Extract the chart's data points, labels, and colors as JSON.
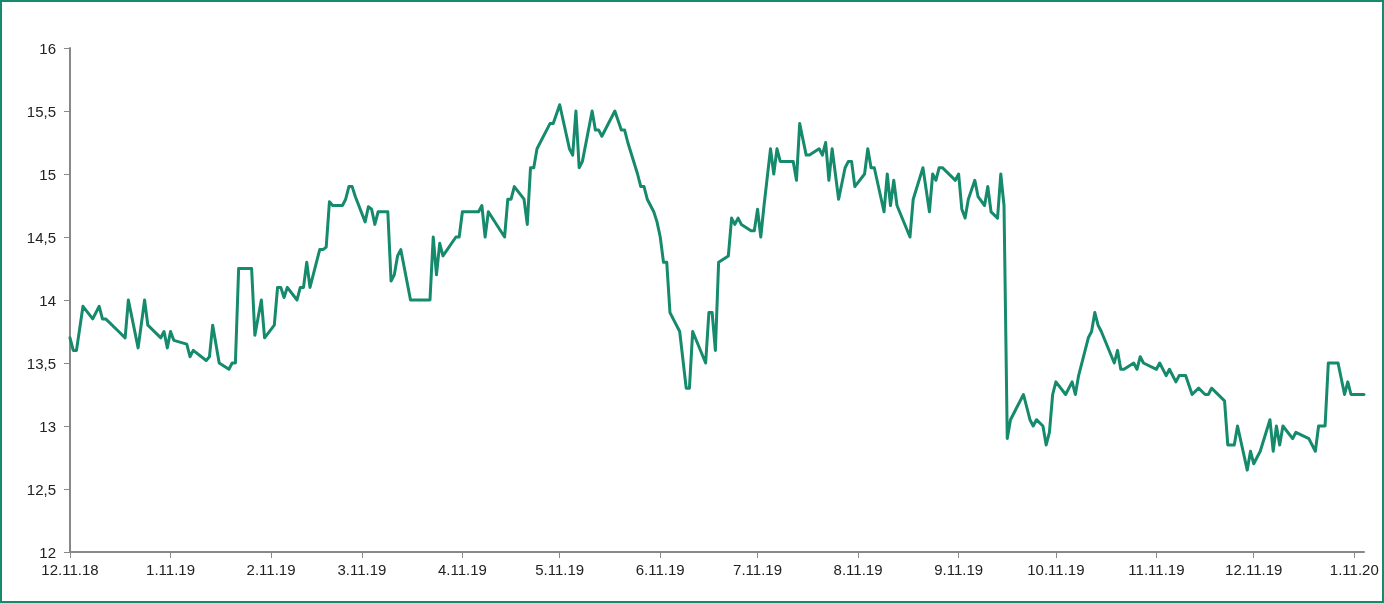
{
  "chart_data": {
    "type": "line",
    "xlim": [
      "2018-12-11",
      "2020-01-14"
    ],
    "ylim": [
      12,
      16
    ],
    "xticks": [
      {
        "value": "2018-12-11",
        "label": "12.11.18"
      },
      {
        "value": "2019-01-11",
        "label": "1.11.19"
      },
      {
        "value": "2019-02-11",
        "label": "2.11.19"
      },
      {
        "value": "2019-03-11",
        "label": "3.11.19"
      },
      {
        "value": "2019-04-11",
        "label": "4.11.19"
      },
      {
        "value": "2019-05-11",
        "label": "5.11.19"
      },
      {
        "value": "2019-06-11",
        "label": "6.11.19"
      },
      {
        "value": "2019-07-11",
        "label": "7.11.19"
      },
      {
        "value": "2019-08-11",
        "label": "8.11.19"
      },
      {
        "value": "2019-09-11",
        "label": "9.11.19"
      },
      {
        "value": "2019-10-11",
        "label": "10.11.19"
      },
      {
        "value": "2019-11-11",
        "label": "11.11.19"
      },
      {
        "value": "2019-12-11",
        "label": "12.11.19"
      },
      {
        "value": "2020-01-11",
        "label": "1.11.20"
      }
    ],
    "yticks": [
      12,
      {
        "value": 12.5,
        "label": "12,5"
      },
      13,
      {
        "value": 13.5,
        "label": "13,5"
      },
      14,
      {
        "value": 14.5,
        "label": "14,5"
      },
      15,
      {
        "value": 15.5,
        "label": "15,5"
      },
      16
    ],
    "grid": false,
    "marker": "none",
    "line_style": "solid",
    "x": [
      "2018-12-11",
      "2018-12-12",
      "2018-12-13",
      "2018-12-15",
      "2018-12-18",
      "2018-12-20",
      "2018-12-21",
      "2018-12-22",
      "2018-12-26",
      "2018-12-28",
      "2018-12-29",
      "2019-01-01",
      "2019-01-03",
      "2019-01-04",
      "2019-01-08",
      "2019-01-09",
      "2019-01-10",
      "2019-01-11",
      "2019-01-12",
      "2019-01-16",
      "2019-01-17",
      "2019-01-18",
      "2019-01-22",
      "2019-01-23",
      "2019-01-24",
      "2019-01-26",
      "2019-01-29",
      "2019-01-30",
      "2019-01-31",
      "2019-02-01",
      "2019-02-05",
      "2019-02-06",
      "2019-02-08",
      "2019-02-09",
      "2019-02-12",
      "2019-02-13",
      "2019-02-14",
      "2019-02-15",
      "2019-02-16",
      "2019-02-19",
      "2019-02-20",
      "2019-02-21",
      "2019-02-22",
      "2019-02-23",
      "2019-02-26",
      "2019-02-27",
      "2019-02-28",
      "2019-03-01",
      "2019-03-02",
      "2019-03-05",
      "2019-03-06",
      "2019-03-07",
      "2019-03-08",
      "2019-03-09",
      "2019-03-12",
      "2019-03-13",
      "2019-03-14",
      "2019-03-15",
      "2019-03-16",
      "2019-03-19",
      "2019-03-20",
      "2019-03-21",
      "2019-03-22",
      "2019-03-23",
      "2019-03-26",
      "2019-04-01",
      "2019-04-02",
      "2019-04-03",
      "2019-04-04",
      "2019-04-05",
      "2019-04-09",
      "2019-04-10",
      "2019-04-11",
      "2019-04-16",
      "2019-04-17",
      "2019-04-18",
      "2019-04-19",
      "2019-04-24",
      "2019-04-25",
      "2019-04-26",
      "2019-04-27",
      "2019-04-30",
      "2019-05-01",
      "2019-05-02",
      "2019-05-03",
      "2019-05-04",
      "2019-05-07",
      "2019-05-08",
      "2019-05-09",
      "2019-05-11",
      "2019-05-14",
      "2019-05-15",
      "2019-05-16",
      "2019-05-17",
      "2019-05-18",
      "2019-05-21",
      "2019-05-22",
      "2019-05-23",
      "2019-05-24",
      "2019-05-28",
      "2019-05-30",
      "2019-05-31",
      "2019-06-01",
      "2019-06-04",
      "2019-06-05",
      "2019-06-06",
      "2019-06-07",
      "2019-06-09",
      "2019-06-10",
      "2019-06-11",
      "2019-06-12",
      "2019-06-13",
      "2019-06-14",
      "2019-06-17",
      "2019-06-19",
      "2019-06-20",
      "2019-06-21",
      "2019-06-25",
      "2019-06-26",
      "2019-06-27",
      "2019-06-28",
      "2019-06-29",
      "2019-07-02",
      "2019-07-03",
      "2019-07-04",
      "2019-07-05",
      "2019-07-06",
      "2019-07-09",
      "2019-07-10",
      "2019-07-11",
      "2019-07-12",
      "2019-07-13",
      "2019-07-15",
      "2019-07-16",
      "2019-07-17",
      "2019-07-18",
      "2019-07-22",
      "2019-07-23",
      "2019-07-24",
      "2019-07-26",
      "2019-07-27",
      "2019-07-30",
      "2019-07-31",
      "2019-08-01",
      "2019-08-02",
      "2019-08-03",
      "2019-08-05",
      "2019-08-07",
      "2019-08-08",
      "2019-08-09",
      "2019-08-10",
      "2019-08-13",
      "2019-08-14",
      "2019-08-15",
      "2019-08-16",
      "2019-08-19",
      "2019-08-20",
      "2019-08-21",
      "2019-08-22",
      "2019-08-23",
      "2019-08-27",
      "2019-08-28",
      "2019-08-31",
      "2019-09-02",
      "2019-09-03",
      "2019-09-04",
      "2019-09-05",
      "2019-09-06",
      "2019-09-10",
      "2019-09-11",
      "2019-09-12",
      "2019-09-13",
      "2019-09-14",
      "2019-09-16",
      "2019-09-17",
      "2019-09-19",
      "2019-09-20",
      "2019-09-21",
      "2019-09-23",
      "2019-09-24",
      "2019-09-25",
      "2019-09-26",
      "2019-09-27",
      "2019-10-01",
      "2019-10-03",
      "2019-10-04",
      "2019-10-05",
      "2019-10-07",
      "2019-10-08",
      "2019-10-09",
      "2019-10-10",
      "2019-10-11",
      "2019-10-14",
      "2019-10-16",
      "2019-10-17",
      "2019-10-18",
      "2019-10-21",
      "2019-10-22",
      "2019-10-23",
      "2019-10-24",
      "2019-10-25",
      "2019-10-29",
      "2019-10-30",
      "2019-10-31",
      "2019-11-01",
      "2019-11-04",
      "2019-11-05",
      "2019-11-06",
      "2019-11-07",
      "2019-11-11",
      "2019-11-12",
      "2019-11-14",
      "2019-11-15",
      "2019-11-17",
      "2019-11-18",
      "2019-11-20",
      "2019-11-22",
      "2019-11-24",
      "2019-11-26",
      "2019-11-27",
      "2019-11-28",
      "2019-12-02",
      "2019-12-03",
      "2019-12-05",
      "2019-12-06",
      "2019-12-09",
      "2019-12-10",
      "2019-12-11",
      "2019-12-13",
      "2019-12-16",
      "2019-12-17",
      "2019-12-18",
      "2019-12-19",
      "2019-12-20",
      "2019-12-23",
      "2019-12-24",
      "2019-12-28",
      "2019-12-30",
      "2019-12-31",
      "2020-01-02",
      "2020-01-03",
      "2020-01-06",
      "2020-01-08",
      "2020-01-09",
      "2020-01-10",
      "2020-01-14"
    ],
    "series": [
      {
        "color": "#168a6c",
        "values": [
          13.7,
          13.6,
          13.6,
          13.95,
          13.85,
          13.95,
          13.85,
          13.85,
          13.75,
          13.7,
          14.0,
          13.62,
          14.0,
          13.8,
          13.7,
          13.75,
          13.62,
          13.75,
          13.68,
          13.65,
          13.55,
          13.6,
          13.52,
          13.55,
          13.8,
          13.5,
          13.45,
          13.5,
          13.5,
          14.25,
          14.25,
          13.72,
          14.0,
          13.7,
          13.8,
          14.1,
          14.1,
          14.02,
          14.1,
          14.0,
          14.1,
          14.1,
          14.3,
          14.1,
          14.4,
          14.4,
          14.42,
          14.78,
          14.75,
          14.75,
          14.8,
          14.9,
          14.9,
          14.82,
          14.62,
          14.74,
          14.72,
          14.6,
          14.7,
          14.7,
          14.15,
          14.2,
          14.35,
          14.4,
          14.0,
          14.0,
          14.5,
          14.2,
          14.45,
          14.35,
          14.5,
          14.5,
          14.7,
          14.7,
          14.75,
          14.5,
          14.7,
          14.5,
          14.8,
          14.8,
          14.9,
          14.8,
          14.6,
          15.05,
          15.05,
          15.2,
          15.35,
          15.4,
          15.4,
          15.55,
          15.2,
          15.15,
          15.5,
          15.05,
          15.1,
          15.5,
          15.35,
          15.35,
          15.3,
          15.5,
          15.35,
          15.35,
          15.25,
          15.0,
          14.9,
          14.9,
          14.8,
          14.7,
          14.62,
          14.5,
          14.3,
          14.3,
          13.9,
          13.75,
          13.3,
          13.3,
          13.75,
          13.5,
          13.9,
          13.9,
          13.6,
          14.3,
          14.35,
          14.65,
          14.6,
          14.65,
          14.6,
          14.55,
          14.55,
          14.72,
          14.5,
          14.75,
          15.2,
          15.0,
          15.2,
          15.1,
          15.1,
          14.95,
          15.4,
          15.15,
          15.15,
          15.2,
          15.15,
          15.25,
          14.95,
          15.2,
          14.8,
          15.05,
          15.1,
          15.1,
          14.9,
          15.0,
          15.2,
          15.05,
          15.05,
          14.7,
          15.0,
          14.75,
          14.95,
          14.75,
          14.5,
          14.8,
          15.05,
          14.7,
          15.0,
          14.95,
          15.05,
          15.05,
          14.95,
          15.0,
          14.72,
          14.65,
          14.8,
          14.95,
          14.82,
          14.75,
          14.9,
          14.7,
          14.65,
          15.0,
          14.75,
          12.9,
          13.05,
          13.25,
          13.05,
          13.0,
          13.05,
          13.0,
          12.85,
          12.95,
          13.25,
          13.35,
          13.25,
          13.35,
          13.25,
          13.4,
          13.7,
          13.75,
          13.9,
          13.8,
          13.75,
          13.5,
          13.6,
          13.45,
          13.45,
          13.5,
          13.45,
          13.55,
          13.5,
          13.45,
          13.5,
          13.4,
          13.45,
          13.35,
          13.4,
          13.4,
          13.25,
          13.3,
          13.25,
          13.25,
          13.3,
          13.2,
          12.85,
          12.85,
          13.0,
          12.65,
          12.8,
          12.7,
          12.8,
          13.05,
          12.8,
          13.0,
          12.85,
          13.0,
          12.9,
          12.95,
          12.9,
          12.8,
          13.0,
          13.0,
          13.5,
          13.5,
          13.25,
          13.35,
          13.25,
          13.25
        ]
      }
    ]
  }
}
